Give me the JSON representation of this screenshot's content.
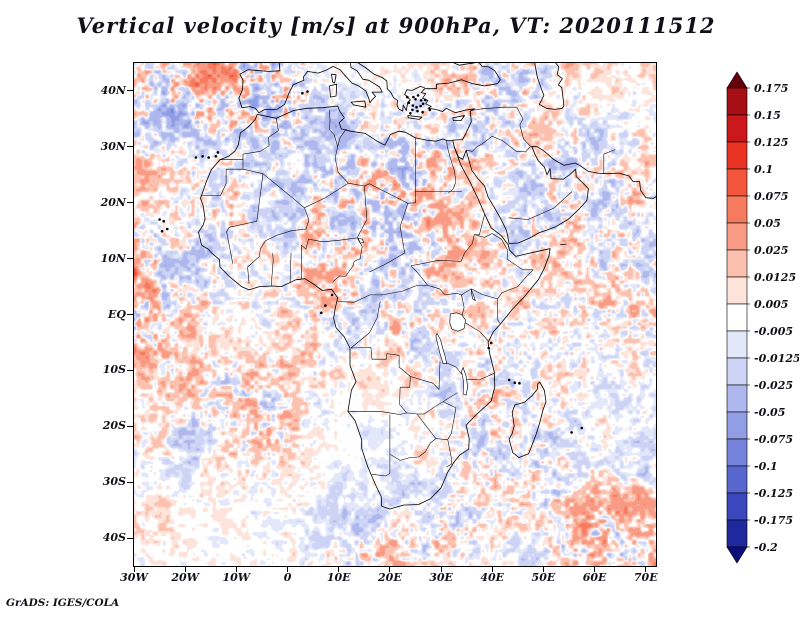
{
  "title": "Vertical velocity [m/s] at 900hPa, VT: 2020111512",
  "footer": "GrADS: IGES/COLA",
  "chart_data": {
    "type": "heatmap",
    "title": "Vertical velocity [m/s] at 900hPa, VT: 2020111512",
    "variable": "Vertical velocity",
    "units": "m/s",
    "pressure_level": "900hPa",
    "valid_time": "2020111512",
    "region": "Africa, Middle East and surrounding oceans",
    "x_axis": {
      "ticks": [
        "30W",
        "20W",
        "10W",
        "0",
        "10E",
        "20E",
        "30E",
        "40E",
        "50E",
        "60E",
        "70E"
      ],
      "lon_min": -30,
      "lon_max": 72
    },
    "y_axis": {
      "ticks": [
        "40N",
        "30N",
        "20N",
        "10N",
        "EQ",
        "10S",
        "20S",
        "30S",
        "40S"
      ],
      "lat_min": -45,
      "lat_max": 45
    },
    "colorbar": {
      "orientation": "vertical",
      "position": "right",
      "labels": [
        "0.175",
        "0.15",
        "0.125",
        "0.1",
        "0.075",
        "0.05",
        "0.025",
        "0.0125",
        "0.005",
        "-0.005",
        "-0.0125",
        "-0.025",
        "-0.05",
        "-0.075",
        "-0.1",
        "-0.125",
        "-0.175",
        "-0.2"
      ],
      "colors_top_to_bottom": [
        "#67000d",
        "#a50f15",
        "#cb181d",
        "#ea3423",
        "#f4553d",
        "#f67a5e",
        "#f99b84",
        "#fcc0ae",
        "#fde3da",
        "#ffffff",
        "#e3e7fa",
        "#ccd3f5",
        "#aeb8ee",
        "#919ee6",
        "#7583dc",
        "#5767cf",
        "#3a47bd",
        "#20289e",
        "#0a0f7a"
      ]
    },
    "map_line_color": "#000000",
    "frame_color": "#000000"
  }
}
